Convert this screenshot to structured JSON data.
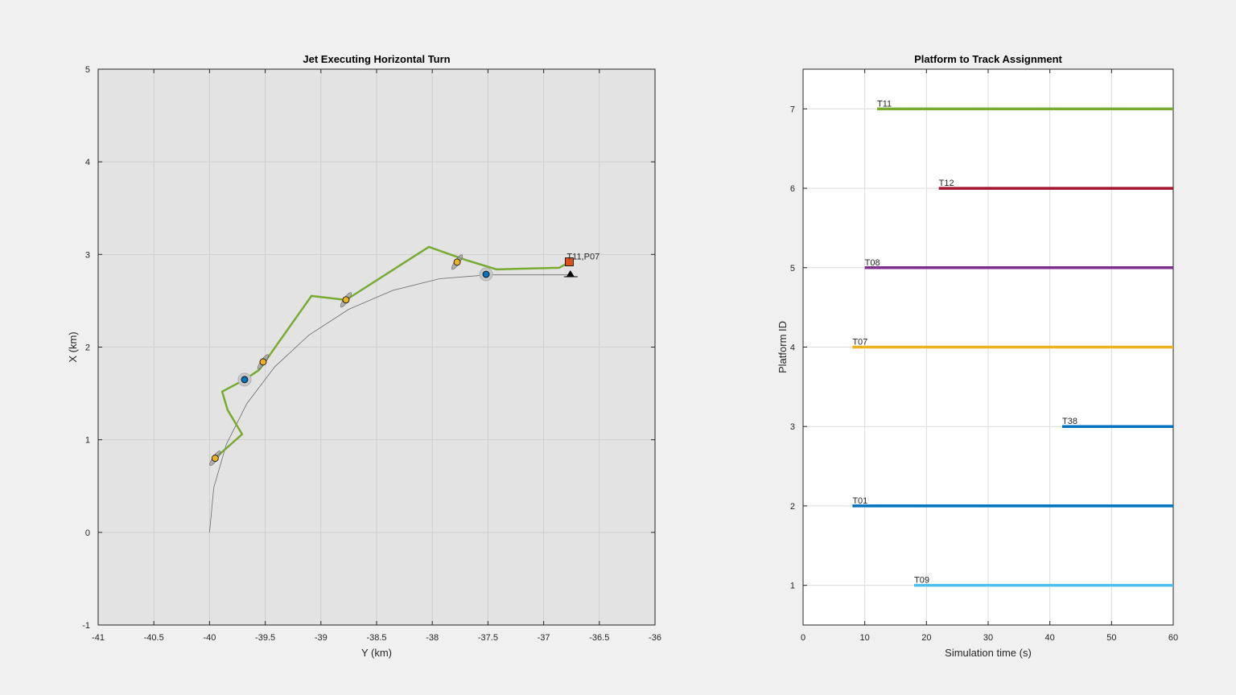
{
  "chart_data": [
    {
      "type": "scatter",
      "title": "Jet Executing Horizontal Turn",
      "xlabel": "Y (km)",
      "ylabel": "X (km)",
      "xlim": [
        -41,
        -36
      ],
      "ylim": [
        -1,
        5
      ],
      "xticks": [
        -41,
        -40.5,
        -40,
        -39.5,
        -39,
        -38.5,
        -38,
        -37.5,
        -37,
        -36.5,
        -36
      ],
      "yticks": [
        -1,
        0,
        1,
        2,
        3,
        4,
        5
      ],
      "grid": true,
      "truth_path": [
        [
          -40,
          0
        ],
        [
          -39.962,
          0.483
        ],
        [
          -39.849,
          0.951
        ],
        [
          -39.665,
          1.39
        ],
        [
          -39.415,
          1.787
        ],
        [
          -39.107,
          2.13
        ],
        [
          -38.75,
          2.408
        ],
        [
          -38.355,
          2.612
        ],
        [
          -37.934,
          2.738
        ],
        [
          -37.5,
          2.78
        ],
        [
          -36.75,
          2.78
        ]
      ],
      "track_path": [
        [
          -39.952,
          0.799
        ],
        [
          -39.707,
          1.059
        ],
        [
          -39.837,
          1.319
        ],
        [
          -39.887,
          1.519
        ],
        [
          -39.685,
          1.649
        ],
        [
          -39.555,
          1.753
        ],
        [
          -39.085,
          2.552
        ],
        [
          -38.775,
          2.509
        ],
        [
          -38.03,
          3.082
        ],
        [
          -37.705,
          2.943
        ],
        [
          -37.423,
          2.839
        ],
        [
          -36.86,
          2.856
        ],
        [
          -36.773,
          2.917
        ]
      ],
      "track_color": "#77ac30",
      "detections_a": [
        [
          -39.95,
          0.8
        ],
        [
          -39.519,
          1.84
        ],
        [
          -38.775,
          2.51
        ],
        [
          -37.777,
          2.917
        ]
      ],
      "detections_a_color": "#edb120",
      "detections_b": [
        [
          -39.685,
          1.649
        ],
        [
          -37.517,
          2.786
        ]
      ],
      "detections_b_color": "#0072bd",
      "track_marker": [
        -36.77,
        2.92
      ],
      "track_marker_color": "#d95319",
      "platform_marker": [
        -36.76,
        2.786
      ],
      "track_label": "T11,P07"
    },
    {
      "type": "bar",
      "orientation": "horizontal-segments",
      "title": "Platform to Track Assignment",
      "xlabel": "Simulation time (s)",
      "ylabel": "Platform ID",
      "xlim": [
        0,
        60
      ],
      "ylim": [
        0.5,
        7.5
      ],
      "xticks": [
        0,
        10,
        20,
        30,
        40,
        50,
        60
      ],
      "yticks": [
        1,
        2,
        3,
        4,
        5,
        6,
        7
      ],
      "grid": true,
      "series": [
        {
          "name": "T11",
          "platform": 7,
          "start": 12,
          "end": 60,
          "color": "#77ac30"
        },
        {
          "name": "T12",
          "platform": 6,
          "start": 22,
          "end": 60,
          "color": "#a2142f"
        },
        {
          "name": "T08",
          "platform": 5,
          "start": 10,
          "end": 60,
          "color": "#7e2f8e"
        },
        {
          "name": "T07",
          "platform": 4,
          "start": 8,
          "end": 60,
          "color": "#edb120"
        },
        {
          "name": "T38",
          "platform": 3,
          "start": 42,
          "end": 60,
          "color": "#0072bd"
        },
        {
          "name": "T01",
          "platform": 2,
          "start": 8,
          "end": 60,
          "color": "#0072bd"
        },
        {
          "name": "T09",
          "platform": 1,
          "start": 18,
          "end": 60,
          "color": "#4dbeee"
        }
      ]
    }
  ]
}
